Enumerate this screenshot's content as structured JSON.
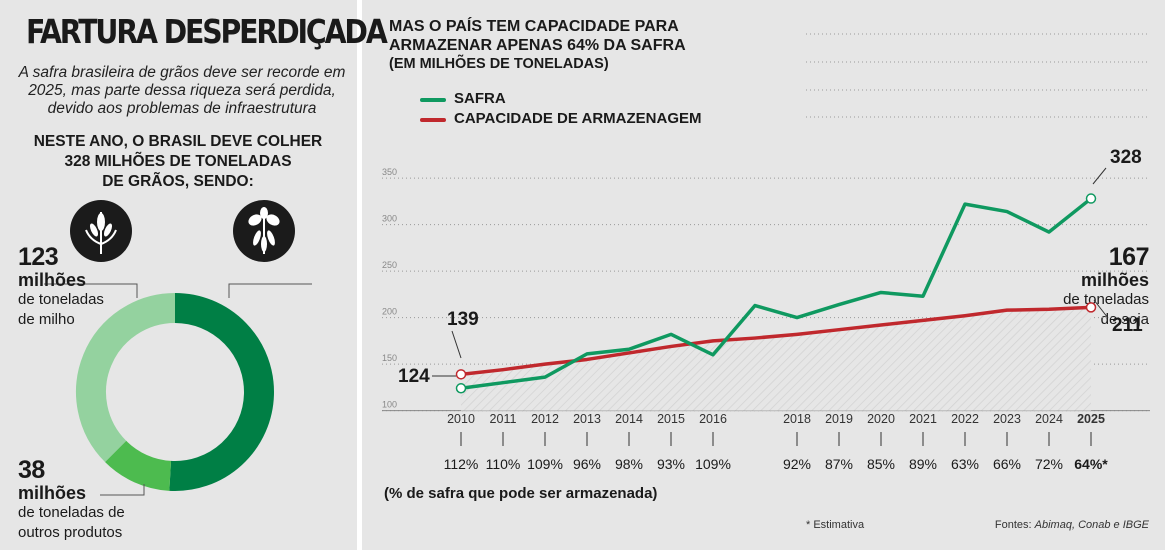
{
  "left": {
    "title": "FARTURA DESPERDIÇADA",
    "subtitle": "A safra brasileira de grãos deve ser recorde em 2025, mas parte dessa riqueza será perdida, devido aos problemas de infraestrutura",
    "intro_line1": "NESTE ANO, O BRASIL DEVE COLHER",
    "intro_line2": "328 MILHÕES DE TONELADAS",
    "intro_line3": "DE GRÃOS, SENDO:",
    "corn": {
      "value": "123",
      "unit": "milhões",
      "desc1": "de toneladas",
      "desc2": "de milho"
    },
    "soy": {
      "value": "167",
      "unit": "milhões",
      "desc1": "de toneladas",
      "desc2": "de soja"
    },
    "other": {
      "value": "38",
      "unit": "milhões",
      "desc1": "de toneladas de",
      "desc2": "outros produtos"
    },
    "donut": [
      {
        "name": "soja",
        "value": 167,
        "color": "#007f45"
      },
      {
        "name": "outros",
        "value": 38,
        "color": "#4dbb4f"
      },
      {
        "name": "milho",
        "value": 123,
        "color": "#94d29f"
      }
    ]
  },
  "right": {
    "title_line1": "MAS O PAÍS TEM CAPACIDADE PARA",
    "title_line2": "ARMAZENAR APENAS 64% DA SAFRA",
    "title_line3": "(EM MILHÕES DE TONELADAS)",
    "legend_safra": "SAFRA",
    "legend_cap": "CAPACIDADE DE ARMAZENAGEM",
    "pct_caption": "(% de safra que pode ser armazenada)",
    "footnote": "* Estimativa",
    "sources_prefix": "Fontes: ",
    "sources_names": "Abimaq, Conab e IBGE"
  },
  "chart_data": {
    "type": "line",
    "title": "MAS O PAÍS TEM CAPACIDADE PARA ARMAZENAR APENAS 64% DA SAFRA",
    "ylabel": "(EM MILHÕES DE TONELADAS)",
    "ylim": [
      100,
      350
    ],
    "yticks": [
      100,
      150,
      200,
      250,
      300,
      350
    ],
    "x": [
      2010,
      2011,
      2012,
      2013,
      2014,
      2015,
      2016,
      2017,
      2018,
      2019,
      2020,
      2021,
      2022,
      2023,
      2024,
      2025
    ],
    "x_tick_labels": [
      "2010",
      "2011",
      "2012",
      "2013",
      "2014",
      "2015",
      "2016",
      "",
      "2018",
      "2019",
      "2020",
      "2021",
      "2022",
      "2023",
      "2024",
      "2025"
    ],
    "percent_labels": [
      "112%",
      "110%",
      "109%",
      "96%",
      "98%",
      "93%",
      "109%",
      "",
      "92%",
      "87%",
      "85%",
      "89%",
      "63%",
      "66%",
      "72%",
      "64%*"
    ],
    "series": [
      {
        "name": "SAFRA",
        "color": "#0f9960",
        "values": [
          124,
          130,
          136,
          161,
          166,
          182,
          160,
          213,
          200,
          214,
          227,
          223,
          322,
          314,
          292,
          328
        ]
      },
      {
        "name": "CAPACIDADE DE ARMAZENAGEM",
        "color": "#c0282d",
        "values": [
          139,
          144,
          150,
          155,
          162,
          169,
          175,
          178,
          182,
          187,
          192,
          197,
          202,
          208,
          209,
          211
        ]
      }
    ],
    "annotations": [
      {
        "text": "139",
        "x": 2010,
        "series": "CAPACIDADE DE ARMAZENAGEM"
      },
      {
        "text": "124",
        "x": 2010,
        "series": "SAFRA"
      },
      {
        "text": "328",
        "x": 2025,
        "series": "SAFRA"
      },
      {
        "text": "211",
        "x": 2025,
        "series": "CAPACIDADE DE ARMAZENAGEM"
      }
    ],
    "grid": true
  }
}
